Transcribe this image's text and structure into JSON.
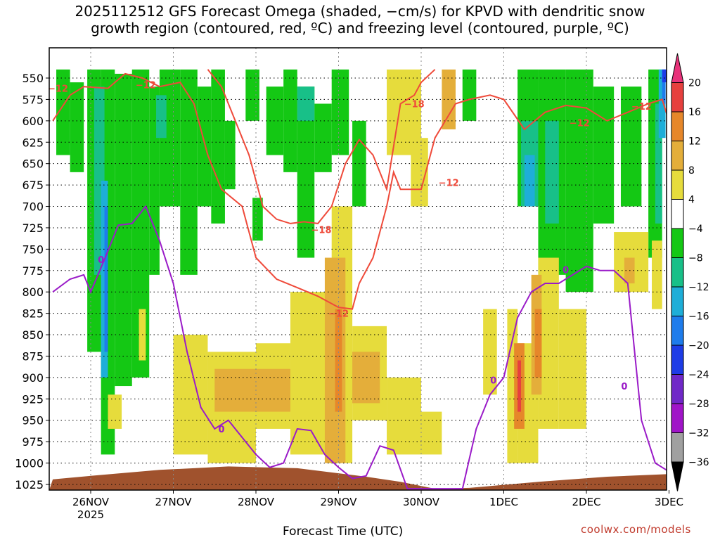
{
  "title": "2025112512 GFS Forecast Omega (shaded, −cm/s) for KPVD with dendritic snow\ngrowth region (contoured, red, ºC) and freezing level (contoured, purple, ºC)",
  "credit": "coolwx.com/models",
  "chart_data": {
    "type": "heatmap",
    "title": "2025112512 GFS Forecast Omega (shaded, −cm/s) for KPVD with dendritic snow growth region (contoured, red, ºC) and freezing level (contoured, purple, ºC)",
    "xlabel": "Forecast Time (UTC)",
    "ylabel": "",
    "x_unit": "hours since 2025-11-26 00Z",
    "xlim": [
      -11,
      168
    ],
    "ylim_hPa": [
      525,
      1037
    ],
    "x_ticks": [
      {
        "label": "26NOV",
        "sublabel": "2025",
        "t": 0
      },
      {
        "label": "27NOV",
        "t": 24
      },
      {
        "label": "28NOV",
        "t": 48
      },
      {
        "label": "29NOV",
        "t": 72
      },
      {
        "label": "30NOV",
        "t": 96
      },
      {
        "label": "1DEC",
        "t": 120
      },
      {
        "label": "2DEC",
        "t": 144
      },
      {
        "label": "3DEC",
        "t": 168
      }
    ],
    "y_ticks": [
      550,
      575,
      600,
      625,
      650,
      675,
      700,
      725,
      750,
      775,
      800,
      825,
      850,
      875,
      900,
      925,
      950,
      975,
      1000,
      1025
    ],
    "colorbar": {
      "levels": [
        "20",
        "16",
        "12",
        "8",
        "4",
        "−4",
        "−8",
        "−12",
        "−16",
        "−20",
        "−24",
        "−28",
        "−32",
        "−36"
      ],
      "colors": [
        "#e8327a",
        "#e6403e",
        "#e6872a",
        "#e4ae3a",
        "#e6dc3c",
        "#ffffff",
        "#14c814",
        "#18c088",
        "#1eaed8",
        "#1e7cec",
        "#1e3ce6",
        "#7028c8",
        "#a014c8",
        "#a0a0a0",
        "#000000"
      ]
    },
    "terrain_color": "#a0522d",
    "omega_regions": [
      {
        "color": "#14c814",
        "cells": [
          [
            -10,
            -6,
            540,
            640
          ],
          [
            -6,
            -2,
            555,
            660
          ],
          [
            -1,
            3,
            540,
            870
          ],
          [
            3,
            7,
            540,
            990
          ],
          [
            7,
            12,
            545,
            910
          ],
          [
            12,
            17,
            540,
            900
          ],
          [
            17,
            20,
            560,
            780
          ],
          [
            20,
            26,
            540,
            700
          ],
          [
            26,
            31,
            540,
            780
          ],
          [
            31,
            35,
            560,
            700
          ],
          [
            35,
            39,
            540,
            720
          ],
          [
            39,
            42,
            600,
            680
          ],
          [
            45,
            49,
            540,
            600
          ],
          [
            47,
            50,
            690,
            740
          ],
          [
            51,
            56,
            560,
            640
          ],
          [
            56,
            60,
            540,
            660
          ],
          [
            60,
            65,
            560,
            760
          ],
          [
            65,
            70,
            580,
            660
          ],
          [
            70,
            75,
            540,
            640
          ],
          [
            76,
            80,
            600,
            700
          ],
          [
            108,
            112,
            540,
            600
          ],
          [
            124,
            130,
            540,
            700
          ],
          [
            130,
            138,
            540,
            780
          ],
          [
            138,
            146,
            540,
            800
          ],
          [
            146,
            152,
            560,
            720
          ],
          [
            154,
            160,
            560,
            700
          ],
          [
            162,
            166,
            540,
            760
          ]
        ]
      },
      {
        "color": "#18c088",
        "cells": [
          [
            1,
            4,
            560,
            780
          ],
          [
            19,
            22,
            570,
            620
          ],
          [
            60,
            65,
            560,
            600
          ],
          [
            125,
            130,
            600,
            700
          ],
          [
            132,
            136,
            600,
            720
          ],
          [
            164,
            166,
            580,
            720
          ]
        ]
      },
      {
        "color": "#1eaed8",
        "cells": [
          [
            3,
            5,
            670,
            900
          ],
          [
            126,
            129,
            640,
            700
          ],
          [
            165,
            167,
            540,
            620
          ]
        ]
      },
      {
        "color": "#1e7cec",
        "cells": [
          [
            4,
            5,
            700,
            870
          ],
          [
            166,
            167,
            540,
            580
          ]
        ]
      },
      {
        "color": "#1e3ce6",
        "cells": [
          [
            166,
            168,
            540,
            555
          ]
        ]
      },
      {
        "color": "#e6dc3c",
        "cells": [
          [
            5,
            9,
            920,
            960
          ],
          [
            14,
            16,
            820,
            880
          ],
          [
            24,
            34,
            850,
            990
          ],
          [
            34,
            48,
            870,
            1000
          ],
          [
            48,
            58,
            860,
            960
          ],
          [
            58,
            70,
            800,
            990
          ],
          [
            70,
            76,
            700,
            1000
          ],
          [
            76,
            86,
            840,
            950
          ],
          [
            86,
            96,
            900,
            990
          ],
          [
            96,
            102,
            940,
            990
          ],
          [
            86,
            96,
            540,
            640
          ],
          [
            93,
            98,
            620,
            700
          ],
          [
            114,
            118,
            820,
            920
          ],
          [
            121,
            124,
            820,
            1000
          ],
          [
            124,
            130,
            860,
            1000
          ],
          [
            130,
            136,
            760,
            960
          ],
          [
            136,
            144,
            820,
            960
          ],
          [
            152,
            162,
            730,
            800
          ],
          [
            163,
            166,
            740,
            820
          ]
        ]
      },
      {
        "color": "#e4ae3a",
        "cells": [
          [
            36,
            58,
            890,
            940
          ],
          [
            68,
            74,
            760,
            1000
          ],
          [
            76,
            84,
            870,
            930
          ],
          [
            128,
            131,
            780,
            920
          ],
          [
            155,
            158,
            760,
            790
          ],
          [
            102,
            106,
            540,
            610
          ]
        ]
      },
      {
        "color": "#e6872a",
        "cells": [
          [
            71,
            73,
            820,
            940
          ],
          [
            123,
            126,
            860,
            960
          ],
          [
            129,
            131,
            820,
            900
          ]
        ]
      },
      {
        "color": "#e6403e",
        "cells": [
          [
            124,
            125,
            880,
            940
          ]
        ]
      }
    ],
    "contours": [
      {
        "name": "dgz -12C",
        "color": "#ef4a3a",
        "label": "−12",
        "x": [
          -11,
          -6,
          -2,
          5,
          10,
          15,
          20,
          26,
          30,
          34,
          38,
          44,
          48,
          54,
          60,
          66,
          72,
          76,
          78,
          82,
          86,
          88,
          90,
          96,
          100,
          106,
          110,
          116,
          120,
          126,
          132,
          138,
          144,
          150,
          156,
          162,
          166,
          168
        ],
        "p": [
          600,
          570,
          560,
          562,
          545,
          550,
          560,
          555,
          580,
          640,
          680,
          700,
          760,
          785,
          795,
          805,
          818,
          820,
          790,
          760,
          700,
          660,
          680,
          680,
          620,
          580,
          575,
          570,
          575,
          610,
          590,
          582,
          585,
          600,
          590,
          580,
          575,
          600
        ]
      },
      {
        "name": "dgz -18C",
        "color": "#ef4a3a",
        "label": "−18",
        "x": [
          34,
          38,
          42,
          46,
          50,
          54,
          58,
          62,
          66,
          70,
          74,
          78,
          82,
          86,
          90,
          94,
          96,
          100
        ],
        "p": [
          540,
          560,
          600,
          640,
          700,
          715,
          720,
          718,
          720,
          700,
          650,
          622,
          640,
          680,
          580,
          570,
          555,
          540
        ]
      },
      {
        "name": "freezing level 0C",
        "color": "#9a1bc8",
        "label": "0",
        "x": [
          -11,
          -6,
          -2,
          0,
          4,
          8,
          12,
          16,
          20,
          24,
          28,
          32,
          36,
          40,
          44,
          48,
          52,
          56,
          60,
          64,
          68,
          72,
          76,
          80,
          84,
          88,
          92,
          96,
          100,
          104,
          108,
          112,
          116,
          120,
          124,
          128,
          132,
          136,
          140,
          144,
          148,
          152,
          156,
          160,
          164,
          168
        ],
        "p": [
          800,
          785,
          780,
          800,
          762,
          722,
          720,
          700,
          740,
          790,
          870,
          935,
          960,
          950,
          970,
          990,
          1005,
          1000,
          960,
          962,
          990,
          1005,
          1018,
          1015,
          980,
          985,
          1030,
          1030,
          1030,
          1030,
          1030,
          960,
          920,
          900,
          830,
          800,
          790,
          790,
          780,
          770,
          775,
          775,
          790,
          950,
          1000,
          1010
        ]
      }
    ],
    "contour_labels": [
      {
        "text": "−12",
        "t": -9.5,
        "p": 562
      },
      {
        "text": "−12",
        "t": 16,
        "p": 558
      },
      {
        "text": "−18",
        "t": 67,
        "p": 727
      },
      {
        "text": "−12",
        "t": 72,
        "p": 825
      },
      {
        "text": "−18",
        "t": 94,
        "p": 580
      },
      {
        "text": "−12",
        "t": 104,
        "p": 672
      },
      {
        "text": "−12",
        "t": 142,
        "p": 602
      },
      {
        "text": "−12",
        "t": 160,
        "p": 583
      },
      {
        "text": "0",
        "t": 3,
        "p": 762
      },
      {
        "text": "0",
        "t": 38,
        "p": 960
      },
      {
        "text": "0",
        "t": 117,
        "p": 903
      },
      {
        "text": "0",
        "t": 155,
        "p": 910
      },
      {
        "text": "0",
        "t": 138,
        "p": 774
      }
    ]
  }
}
